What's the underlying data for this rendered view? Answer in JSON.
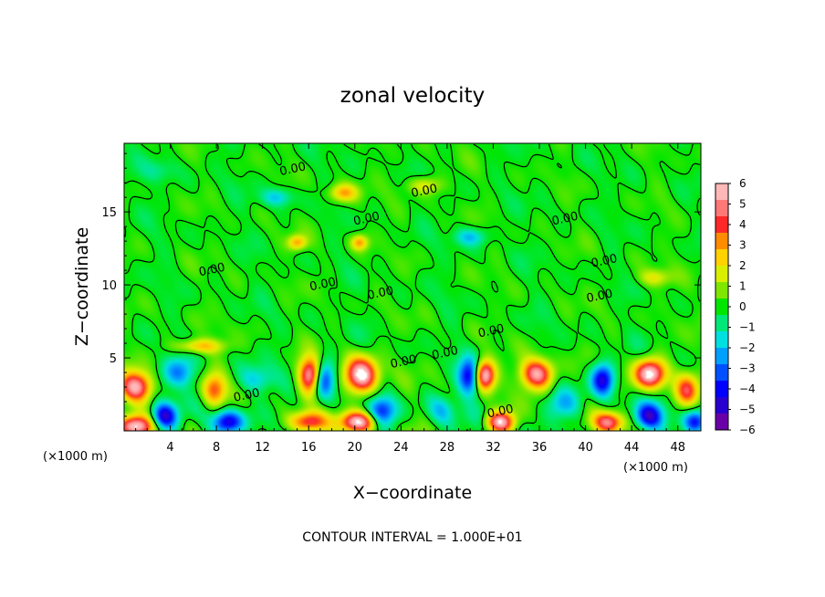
{
  "chart_data": {
    "type": "heatmap",
    "title": "zonal velocity",
    "xlabel": "X−coordinate",
    "ylabel": "Z−coordinate",
    "x_unit_left": "(×1000 m)",
    "x_unit_right": "(×1000 m)",
    "xlim": [
      0,
      50
    ],
    "ylim": [
      0,
      19.7
    ],
    "x_ticks": [
      4,
      8,
      12,
      16,
      20,
      24,
      28,
      32,
      36,
      40,
      44,
      48
    ],
    "x_tick_labels": [
      "4",
      "8",
      "12",
      "16",
      "20",
      "24",
      "28",
      "32",
      "36",
      "40",
      "44",
      "48"
    ],
    "y_ticks": [
      5,
      10,
      15
    ],
    "y_tick_labels": [
      "5",
      "10",
      "15"
    ],
    "colorbar": {
      "min": -6,
      "max": 6,
      "ticks": [
        6,
        5,
        4,
        3,
        2,
        1,
        0,
        -1,
        -2,
        -3,
        -4,
        -5,
        -6
      ],
      "tick_labels": [
        "6",
        "5",
        "4",
        "3",
        "2",
        "1",
        "0",
        "−1",
        "−2",
        "−3",
        "−4",
        "−5",
        "−6"
      ],
      "colors": [
        "#6a00a8",
        "#2a00d0",
        "#0000ff",
        "#0050ff",
        "#00a0ff",
        "#00e0e0",
        "#00e878",
        "#00e600",
        "#80e600",
        "#d8f000",
        "#ffd200",
        "#ff8c00",
        "#ff2828",
        "#ff7878",
        "#ffb8b8"
      ]
    },
    "contour_labels": [
      {
        "text": "0.00",
        "x": 14.6,
        "y": 18.0
      },
      {
        "text": "0.00",
        "x": 26.0,
        "y": 16.5
      },
      {
        "text": "0.00",
        "x": 21.0,
        "y": 14.6
      },
      {
        "text": "0.00",
        "x": 38.2,
        "y": 14.6
      },
      {
        "text": "0.00",
        "x": 7.6,
        "y": 11.1
      },
      {
        "text": "0.00",
        "x": 17.2,
        "y": 10.1
      },
      {
        "text": "0.00",
        "x": 22.2,
        "y": 9.5
      },
      {
        "text": "0.00",
        "x": 41.6,
        "y": 11.7
      },
      {
        "text": "0.00",
        "x": 41.2,
        "y": 9.3
      },
      {
        "text": "0.00",
        "x": 31.8,
        "y": 6.9
      },
      {
        "text": "0.00",
        "x": 24.2,
        "y": 4.8
      },
      {
        "text": "0.00",
        "x": 27.8,
        "y": 5.4
      },
      {
        "text": "0.00",
        "x": 10.6,
        "y": 2.5
      },
      {
        "text": "0.00",
        "x": 32.6,
        "y": 1.4
      }
    ],
    "strong_features": [
      {
        "x": 1.0,
        "z": 3.0,
        "value": 6,
        "sx": 1.4,
        "sz": 1.0
      },
      {
        "x": 1.0,
        "z": 0.3,
        "value": 6,
        "sx": 1.5,
        "sz": 0.7
      },
      {
        "x": 3.5,
        "z": 1.0,
        "value": -5,
        "sx": 1.1,
        "sz": 0.9
      },
      {
        "x": 4.7,
        "z": 4.0,
        "value": -3,
        "sx": 1.4,
        "sz": 1.0
      },
      {
        "x": 7.8,
        "z": 2.8,
        "value": 4,
        "sx": 1.0,
        "sz": 1.1
      },
      {
        "x": 9.0,
        "z": 0.6,
        "value": -5,
        "sx": 1.3,
        "sz": 0.8
      },
      {
        "x": 11.5,
        "z": 3.5,
        "value": -2,
        "sx": 1.5,
        "sz": 0.9
      },
      {
        "x": 16.2,
        "z": 3.8,
        "value": 7,
        "sx": 1.0,
        "sz": 1.2
      },
      {
        "x": 17.2,
        "z": 3.5,
        "value": -5,
        "sx": 1.0,
        "sz": 1.3
      },
      {
        "x": 16.0,
        "z": 0.6,
        "value": 5,
        "sx": 1.6,
        "sz": 0.7
      },
      {
        "x": 20.6,
        "z": 3.8,
        "value": 7,
        "sx": 1.4,
        "sz": 1.2
      },
      {
        "x": 20.3,
        "z": 0.6,
        "value": 6,
        "sx": 1.6,
        "sz": 0.7
      },
      {
        "x": 22.3,
        "z": 1.3,
        "value": -4,
        "sx": 1.2,
        "sz": 1.0
      },
      {
        "x": 27.5,
        "z": 1.4,
        "value": -2,
        "sx": 1.2,
        "sz": 1.0
      },
      {
        "x": 31.2,
        "z": 3.8,
        "value": 7,
        "sx": 0.9,
        "sz": 1.0
      },
      {
        "x": 30.0,
        "z": 3.7,
        "value": -5,
        "sx": 1.0,
        "sz": 1.2
      },
      {
        "x": 32.6,
        "z": 0.6,
        "value": 6,
        "sx": 1.2,
        "sz": 0.7
      },
      {
        "x": 35.8,
        "z": 3.9,
        "value": 6,
        "sx": 1.4,
        "sz": 1.0
      },
      {
        "x": 38.0,
        "z": 1.8,
        "value": -2,
        "sx": 1.5,
        "sz": 1.0
      },
      {
        "x": 41.5,
        "z": 3.5,
        "value": -5,
        "sx": 1.0,
        "sz": 1.1
      },
      {
        "x": 42.0,
        "z": 0.6,
        "value": 5,
        "sx": 1.3,
        "sz": 0.7
      },
      {
        "x": 45.6,
        "z": 3.9,
        "value": 7,
        "sx": 1.3,
        "sz": 1.0
      },
      {
        "x": 45.5,
        "z": 1.0,
        "value": -5,
        "sx": 1.2,
        "sz": 0.9
      },
      {
        "x": 48.8,
        "z": 2.8,
        "value": 4,
        "sx": 1.0,
        "sz": 1.1
      },
      {
        "x": 49.5,
        "z": 0.6,
        "value": -4,
        "sx": 1.0,
        "sz": 0.8
      },
      {
        "x": 6.5,
        "z": 5.8,
        "value": 3,
        "sx": 2.0,
        "sz": 0.5
      },
      {
        "x": 15.0,
        "z": 12.9,
        "value": 3,
        "sx": 0.8,
        "sz": 0.5
      },
      {
        "x": 20.4,
        "z": 12.9,
        "value": 3,
        "sx": 0.7,
        "sz": 0.5
      },
      {
        "x": 19.0,
        "z": 16.3,
        "value": 3,
        "sx": 1.2,
        "sz": 0.6
      },
      {
        "x": 26.0,
        "z": 16.8,
        "value": 2,
        "sx": 1.5,
        "sz": 0.6
      },
      {
        "x": 30.0,
        "z": 13.3,
        "value": -2,
        "sx": 1.4,
        "sz": 0.6
      },
      {
        "x": 13.2,
        "z": 16.0,
        "value": -2,
        "sx": 1.3,
        "sz": 0.6
      },
      {
        "x": 3.0,
        "z": 17.8,
        "value": -1,
        "sx": 1.5,
        "sz": 0.8
      },
      {
        "x": 46.0,
        "z": 10.5,
        "value": 2,
        "sx": 1.4,
        "sz": 0.6
      }
    ]
  },
  "footer": "CONTOUR INTERVAL = 1.000E+01"
}
